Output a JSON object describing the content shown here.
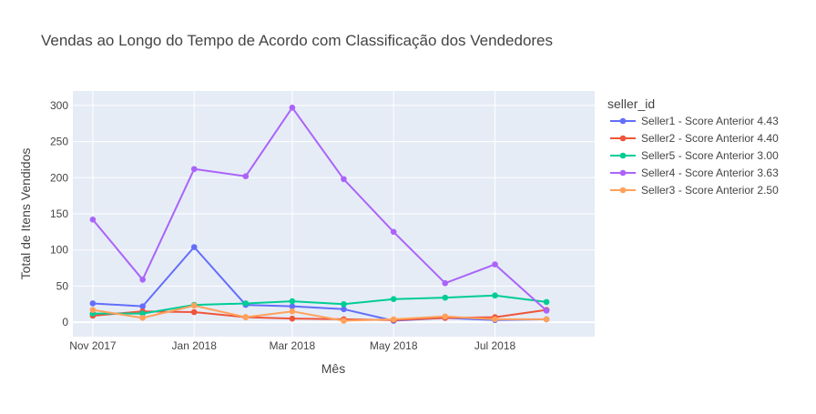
{
  "chart_data": {
    "type": "line",
    "title": "Vendas ao Longo do Tempo de Acordo com Classificação dos Vendedores",
    "xlabel": "Mês",
    "ylabel": "Total de Itens Vendidos",
    "x": [
      "2017-11",
      "2017-12",
      "2018-01",
      "2018-02",
      "2018-03",
      "2018-04",
      "2018-05",
      "2018-06",
      "2018-07",
      "2018-08"
    ],
    "xticks": [
      {
        "value": "2017-11",
        "label": "Nov 2017"
      },
      {
        "value": "2018-01",
        "label": "Jan 2018"
      },
      {
        "value": "2018-03",
        "label": "Mar 2018"
      },
      {
        "value": "2018-05",
        "label": "May 2018"
      },
      {
        "value": "2018-07",
        "label": "Jul 2018"
      }
    ],
    "xlim": [
      "2017-10-20",
      "2018-08-30"
    ],
    "ylim": [
      -20,
      320
    ],
    "yticks": [
      0,
      50,
      100,
      150,
      200,
      250,
      300
    ],
    "grid": true,
    "legend": {
      "title": "seller_id",
      "placement": "right"
    },
    "series": [
      {
        "name": "Seller1 - Score Anterior 4.43",
        "color": "#636efa",
        "values": [
          26,
          22,
          104,
          24,
          22,
          18,
          2,
          6,
          3,
          4
        ]
      },
      {
        "name": "Seller2 - Score Anterior 4.40",
        "color": "#ef553b",
        "values": [
          9,
          15,
          14,
          7,
          5,
          4,
          3,
          6,
          7,
          17
        ]
      },
      {
        "name": "Seller5 - Score Anterior 3.00",
        "color": "#00cc96",
        "values": [
          12,
          12,
          24,
          26,
          29,
          25,
          32,
          34,
          37,
          28
        ]
      },
      {
        "name": "Seller4 - Score Anterior 3.63",
        "color": "#ab63fa",
        "values": [
          142,
          59,
          212,
          202,
          297,
          198,
          125,
          54,
          80,
          16
        ]
      },
      {
        "name": "Seller3 - Score Anterior 2.50",
        "color": "#ffa15a",
        "values": [
          17,
          6,
          23,
          7,
          15,
          2,
          4,
          8,
          4,
          4
        ]
      }
    ]
  }
}
